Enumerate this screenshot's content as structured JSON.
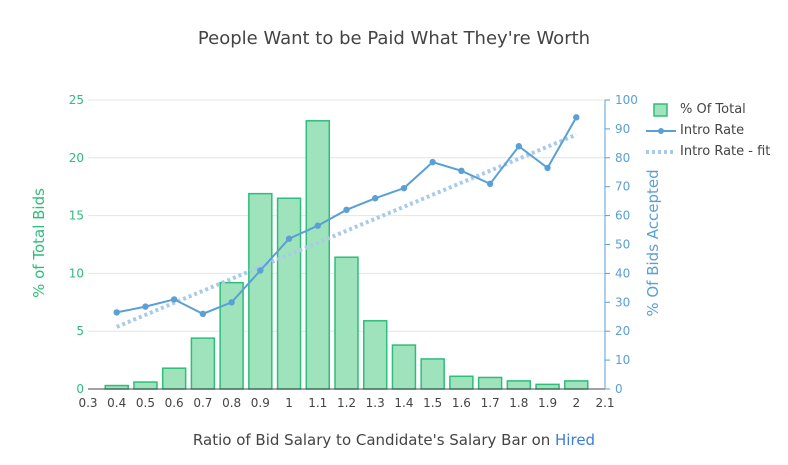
{
  "chart_data": {
    "type": "bar",
    "title": "People Want to be Paid What They're Worth",
    "xlabel_prefix": "Ratio of Bid Salary to Candidate's Salary Bar on ",
    "xlabel_highlight": "Hired",
    "ylabel_left": "% of Total Bids",
    "ylabel_right": "% Of Bids Accepted",
    "xlim": [
      0.3,
      2.1
    ],
    "ylim_left": [
      0,
      25
    ],
    "ylim_right": [
      0,
      100
    ],
    "x_ticks": [
      "0.3",
      "0.4",
      "0.5",
      "0.6",
      "0.7",
      "0.8",
      "0.9",
      "1",
      "1.1",
      "1.2",
      "1.3",
      "1.4",
      "1.5",
      "1.6",
      "1.7",
      "1.8",
      "1.9",
      "2",
      "2.1"
    ],
    "y_left_ticks": [
      "0",
      "5",
      "10",
      "15",
      "20",
      "25"
    ],
    "y_right_ticks": [
      "0",
      "10",
      "20",
      "30",
      "40",
      "50",
      "60",
      "70",
      "80",
      "90",
      "100"
    ],
    "grid": true,
    "legend_position": "top-right",
    "series": [
      {
        "name": "% Of Total",
        "type": "bar",
        "axis": "left",
        "color": "#9fe3bd",
        "edge_color": "#2ebd7a",
        "x": [
          0.4,
          0.5,
          0.6,
          0.7,
          0.8,
          0.9,
          1.0,
          1.1,
          1.2,
          1.3,
          1.4,
          1.5,
          1.6,
          1.7,
          1.8,
          1.9,
          2.0
        ],
        "values": [
          0.3,
          0.6,
          1.8,
          4.4,
          9.2,
          16.9,
          16.5,
          23.2,
          11.4,
          5.9,
          3.8,
          2.6,
          1.1,
          1.0,
          0.7,
          0.4,
          0.7
        ]
      },
      {
        "name": "Intro Rate",
        "type": "line",
        "axis": "right",
        "color": "#5a9fd6",
        "x": [
          0.4,
          0.5,
          0.6,
          0.7,
          0.8,
          0.9,
          1.0,
          1.1,
          1.2,
          1.3,
          1.4,
          1.5,
          1.6,
          1.7,
          1.8,
          1.9,
          2.0
        ],
        "values": [
          26.5,
          28.5,
          31,
          26,
          30,
          41,
          52,
          56.5,
          62,
          66,
          69.5,
          78.5,
          75.5,
          71,
          84,
          76.5,
          94
        ]
      },
      {
        "name": "Intro Rate - fit",
        "type": "line",
        "style": "dotted",
        "axis": "right",
        "color": "#a8cbe8",
        "x": [
          0.4,
          2.0
        ],
        "values": [
          21.5,
          88
        ]
      }
    ]
  }
}
